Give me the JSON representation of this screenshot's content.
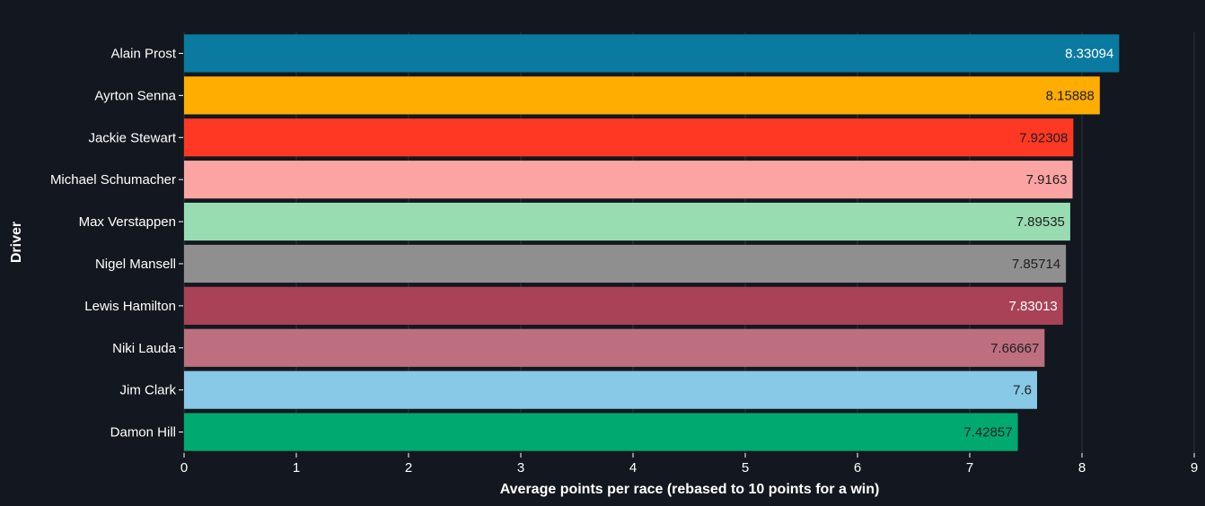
{
  "chart_data": {
    "type": "bar",
    "orientation": "horizontal",
    "categories": [
      "Alain Prost",
      "Ayrton Senna",
      "Jackie Stewart",
      "Michael Schumacher",
      "Max Verstappen",
      "Nigel Mansell",
      "Lewis Hamilton",
      "Niki Lauda",
      "Jim Clark",
      "Damon Hill"
    ],
    "values": [
      8.33094,
      8.15888,
      7.92308,
      7.9163,
      7.89535,
      7.85714,
      7.83013,
      7.66667,
      7.6,
      7.42857
    ],
    "value_labels": [
      "8.33094",
      "8.15888",
      "7.92308",
      "7.9163",
      "7.89535",
      "7.85714",
      "7.83013",
      "7.66667",
      "7.6",
      "7.42857"
    ],
    "colors": [
      "#0a7aa0",
      "#ffad00",
      "#ff3823",
      "#fca3a3",
      "#98ddb2",
      "#8f8f8f",
      "#aa4257",
      "#bd6f80",
      "#87c9e6",
      "#00a970"
    ],
    "label_colors": [
      "#ffffff",
      "#1f1f1f",
      "#1f1f1f",
      "#1f1f1f",
      "#1f1f1f",
      "#1f1f1f",
      "#ffffff",
      "#1f1f1f",
      "#1f1f1f",
      "#1f1f1f"
    ],
    "title": "",
    "xlabel": "Average points per race (rebased to 10 points for a win)",
    "ylabel": "Driver",
    "xlim": [
      0,
      9
    ],
    "xticks": [
      "0",
      "1",
      "2",
      "3",
      "4",
      "5",
      "6",
      "7",
      "8",
      "9"
    ],
    "grid": "vertical",
    "legend": "none",
    "background": "#13171f"
  }
}
